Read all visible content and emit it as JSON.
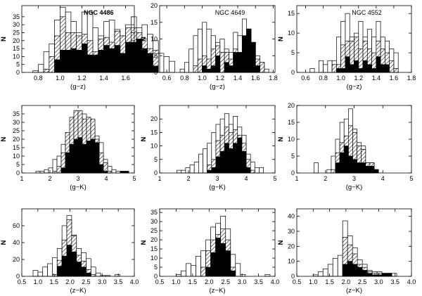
{
  "chart_data": [
    {
      "type": "bar",
      "title": "NGC 4486",
      "xlabel": "(g−z)",
      "ylabel": "N",
      "xlim": [
        0.65,
        1.68
      ],
      "ylim": [
        0,
        42
      ],
      "xticks": [
        0.8,
        1.0,
        1.2,
        1.4,
        1.6
      ],
      "yticks": [
        0,
        5,
        10,
        15,
        20,
        25,
        30,
        35
      ],
      "bin_start": 0.75,
      "bin_width": 0.05,
      "series": [
        {
          "values": [
            1,
            5,
            13,
            18,
            33,
            41,
            38,
            32,
            25,
            38,
            38,
            28,
            23,
            32,
            33,
            27,
            23,
            30,
            35,
            28,
            30,
            24,
            20,
            12,
            10,
            7
          ]
        },
        {
          "values": [
            0,
            0,
            2,
            10,
            23,
            35,
            25,
            25,
            23,
            24,
            20,
            13,
            21,
            22,
            19,
            26,
            23,
            28,
            28,
            25,
            21,
            15,
            14,
            0,
            0,
            0
          ]
        },
        {
          "values": [
            0,
            0,
            0,
            0,
            8,
            14,
            14,
            15,
            14,
            18,
            11,
            11,
            14,
            17,
            15,
            17,
            12,
            19,
            19,
            21,
            15,
            12,
            4,
            0,
            0,
            0
          ]
        }
      ]
    },
    {
      "type": "bar",
      "title": "NGC 4649",
      "xlabel": "(g−z)",
      "ylabel": "N",
      "xlim": [
        0.52,
        1.82
      ],
      "ylim": [
        0,
        20
      ],
      "xticks": [
        0.6,
        0.8,
        1.0,
        1.2,
        1.4,
        1.6,
        1.8
      ],
      "yticks": [
        0,
        5,
        10,
        15,
        20
      ],
      "bin_start": 0.75,
      "bin_width": 0.05,
      "series": [
        {
          "values": [
            1,
            3,
            7,
            11,
            13,
            15,
            13,
            11,
            9,
            10,
            7,
            6,
            12,
            11,
            16,
            13,
            9,
            5,
            3,
            1
          ]
        },
        {
          "values": [
            0,
            0,
            0,
            2,
            4,
            5,
            4,
            7,
            8,
            6,
            6,
            4,
            7,
            6,
            11,
            13,
            9,
            4,
            3,
            0
          ]
        },
        {
          "values": [
            0,
            0,
            0,
            0,
            0,
            2,
            1,
            2,
            5,
            0,
            3,
            2,
            6,
            6,
            11,
            13,
            9,
            2,
            0,
            0
          ]
        }
      ]
    },
    {
      "type": "bar",
      "title": "NGC 4552",
      "xlabel": "(g−z)",
      "ylabel": "N",
      "xlim": [
        0.5,
        1.8
      ],
      "ylim": [
        0,
        17
      ],
      "xticks": [
        0.6,
        0.8,
        1.0,
        1.2,
        1.4,
        1.6,
        1.8
      ],
      "yticks": [
        0,
        5,
        10,
        15
      ],
      "bin_start": 0.65,
      "bin_width": 0.05,
      "series": [
        {
          "values": [
            1,
            0,
            3,
            2,
            3,
            3,
            9,
            13,
            15,
            9,
            10,
            13,
            9,
            11,
            9,
            13,
            9,
            8,
            6,
            5
          ]
        },
        {
          "values": [
            0,
            0,
            0,
            0,
            0,
            2,
            2,
            7,
            8,
            8,
            9,
            6,
            8,
            6,
            5,
            8,
            6,
            5,
            3,
            1
          ]
        },
        {
          "values": [
            0,
            0,
            0,
            0,
            0,
            0,
            1,
            1,
            4,
            2,
            3,
            1,
            3,
            2,
            1,
            4,
            2,
            2,
            0,
            0
          ]
        }
      ]
    },
    {
      "type": "bar",
      "title": "",
      "xlabel": "(g−K)",
      "ylabel": "N",
      "xlim": [
        1,
        5
      ],
      "ylim": [
        0,
        40
      ],
      "xticks": [
        1,
        2,
        3,
        4,
        5
      ],
      "yticks": [
        0,
        5,
        10,
        15,
        20,
        25,
        30,
        35
      ],
      "bin_start": 1.2,
      "bin_width": 0.15,
      "series": [
        {
          "values": [
            0,
            0,
            1,
            1,
            2,
            3,
            8,
            10,
            17,
            19,
            23,
            28,
            33,
            35,
            32,
            28,
            22,
            18,
            8,
            4,
            2,
            1,
            1,
            1
          ]
        },
        {
          "values": [
            0,
            0,
            0,
            0,
            0,
            0,
            1,
            4,
            12,
            24,
            33,
            37,
            37,
            32,
            33,
            32,
            20,
            12,
            6,
            1,
            0,
            0,
            0,
            0
          ]
        },
        {
          "values": [
            0,
            0,
            0,
            0,
            0,
            0,
            0,
            0,
            3,
            12,
            17,
            20,
            21,
            17,
            19,
            20,
            18,
            5,
            1,
            0,
            0,
            0,
            1,
            1
          ]
        }
      ]
    },
    {
      "type": "bar",
      "title": "",
      "xlabel": "(g−K)",
      "ylabel": "N",
      "xlim": [
        1,
        5
      ],
      "ylim": [
        0,
        25
      ],
      "xticks": [
        1,
        2,
        3,
        4,
        5
      ],
      "yticks": [
        0,
        5,
        10,
        15,
        20
      ],
      "bin_start": 1.6,
      "bin_width": 0.15,
      "series": [
        {
          "values": [
            1,
            1,
            2,
            3,
            4,
            7,
            9,
            11,
            15,
            18,
            20,
            22,
            18,
            21,
            17,
            14,
            7,
            4,
            2,
            2
          ]
        },
        {
          "values": [
            0,
            0,
            0,
            0,
            0,
            0,
            0,
            3,
            5,
            12,
            14,
            17,
            15,
            16,
            14,
            11,
            5,
            1,
            0,
            0
          ]
        },
        {
          "values": [
            0,
            0,
            0,
            0,
            0,
            0,
            0,
            1,
            2,
            6,
            8,
            11,
            9,
            11,
            13,
            8,
            2,
            0,
            0,
            0
          ]
        }
      ]
    },
    {
      "type": "bar",
      "title": "",
      "xlabel": "(g−K)",
      "ylabel": "N",
      "xlim": [
        1,
        5
      ],
      "ylim": [
        0,
        20
      ],
      "xticks": [
        1,
        2,
        3,
        4,
        5
      ],
      "yticks": [
        0,
        5,
        10,
        15,
        20
      ],
      "bin_start": 1.6,
      "bin_width": 0.15,
      "series": [
        {
          "values": [
            3,
            0,
            0,
            1,
            5,
            10,
            15,
            16,
            19,
            13,
            9,
            8,
            3,
            3,
            1
          ]
        },
        {
          "values": [
            0,
            0,
            0,
            0,
            1,
            6,
            9,
            11,
            14,
            12,
            8,
            7,
            3,
            3,
            1
          ]
        },
        {
          "values": [
            0,
            0,
            0,
            0,
            0,
            3,
            6,
            8,
            5,
            4,
            3,
            3,
            2,
            2,
            1
          ]
        }
      ]
    },
    {
      "type": "bar",
      "title": "",
      "xlabel": "(z−K)",
      "ylabel": "N",
      "xlim": [
        0.5,
        4.0
      ],
      "ylim": [
        0,
        80
      ],
      "xticks": [
        0.5,
        1.0,
        1.5,
        2.0,
        2.5,
        3.0,
        3.5,
        4.0
      ],
      "yticks": [
        0,
        20,
        40,
        60
      ],
      "bin_start": 0.85,
      "bin_width": 0.15,
      "series": [
        {
          "values": [
            7,
            5,
            11,
            15,
            22,
            33,
            60,
            72,
            49,
            33,
            28,
            21,
            11,
            4,
            1,
            1,
            0,
            2
          ]
        },
        {
          "values": [
            0,
            0,
            0,
            0,
            2,
            19,
            43,
            67,
            48,
            25,
            18,
            8,
            2,
            0,
            0,
            0,
            0,
            0
          ]
        },
        {
          "values": [
            0,
            0,
            0,
            0,
            0,
            12,
            24,
            37,
            29,
            17,
            11,
            4,
            0,
            0,
            0,
            0,
            0,
            0
          ]
        }
      ]
    },
    {
      "type": "bar",
      "title": "",
      "xlabel": "(z−K)",
      "ylabel": "N",
      "xlim": [
        0.5,
        4.0
      ],
      "ylim": [
        0,
        37
      ],
      "xticks": [
        0.5,
        1.0,
        1.5,
        2.0,
        2.5,
        3.0,
        3.5,
        4.0
      ],
      "yticks": [
        0,
        5,
        10,
        15,
        20,
        25,
        30,
        35
      ],
      "bin_start": 1.0,
      "bin_width": 0.15,
      "series": [
        {
          "values": [
            1,
            3,
            7,
            6,
            11,
            14,
            20,
            27,
            29,
            33,
            26,
            12,
            7,
            1,
            0,
            0,
            0,
            0,
            1
          ]
        },
        {
          "values": [
            0,
            0,
            0,
            0,
            0,
            5,
            14,
            20,
            23,
            26,
            20,
            5,
            0,
            0,
            0,
            0,
            0,
            0,
            0
          ]
        },
        {
          "values": [
            0,
            0,
            0,
            0,
            0,
            0,
            5,
            13,
            21,
            18,
            14,
            3,
            0,
            0,
            0,
            0,
            0,
            0,
            0
          ]
        }
      ]
    },
    {
      "type": "bar",
      "title": "",
      "xlabel": "(z−K)",
      "ylabel": "N",
      "xlim": [
        0.5,
        4.0
      ],
      "ylim": [
        0,
        45
      ],
      "xticks": [
        0.5,
        1.0,
        1.5,
        2.0,
        2.5,
        3.0,
        3.5,
        4.0
      ],
      "yticks": [
        0,
        10,
        20,
        30,
        40
      ],
      "bin_start": 1.0,
      "bin_width": 0.15,
      "series": [
        {
          "values": [
            1,
            3,
            5,
            8,
            12,
            14,
            37,
            27,
            19,
            11,
            8,
            4,
            3,
            3,
            2,
            2,
            2
          ]
        },
        {
          "values": [
            0,
            0,
            0,
            0,
            0,
            0,
            26,
            21,
            15,
            8,
            6,
            3,
            2,
            2,
            2,
            2,
            0
          ]
        },
        {
          "values": [
            0,
            0,
            0,
            0,
            0,
            0,
            8,
            10,
            8,
            6,
            4,
            2,
            1,
            1,
            2,
            2,
            0
          ]
        }
      ]
    }
  ]
}
